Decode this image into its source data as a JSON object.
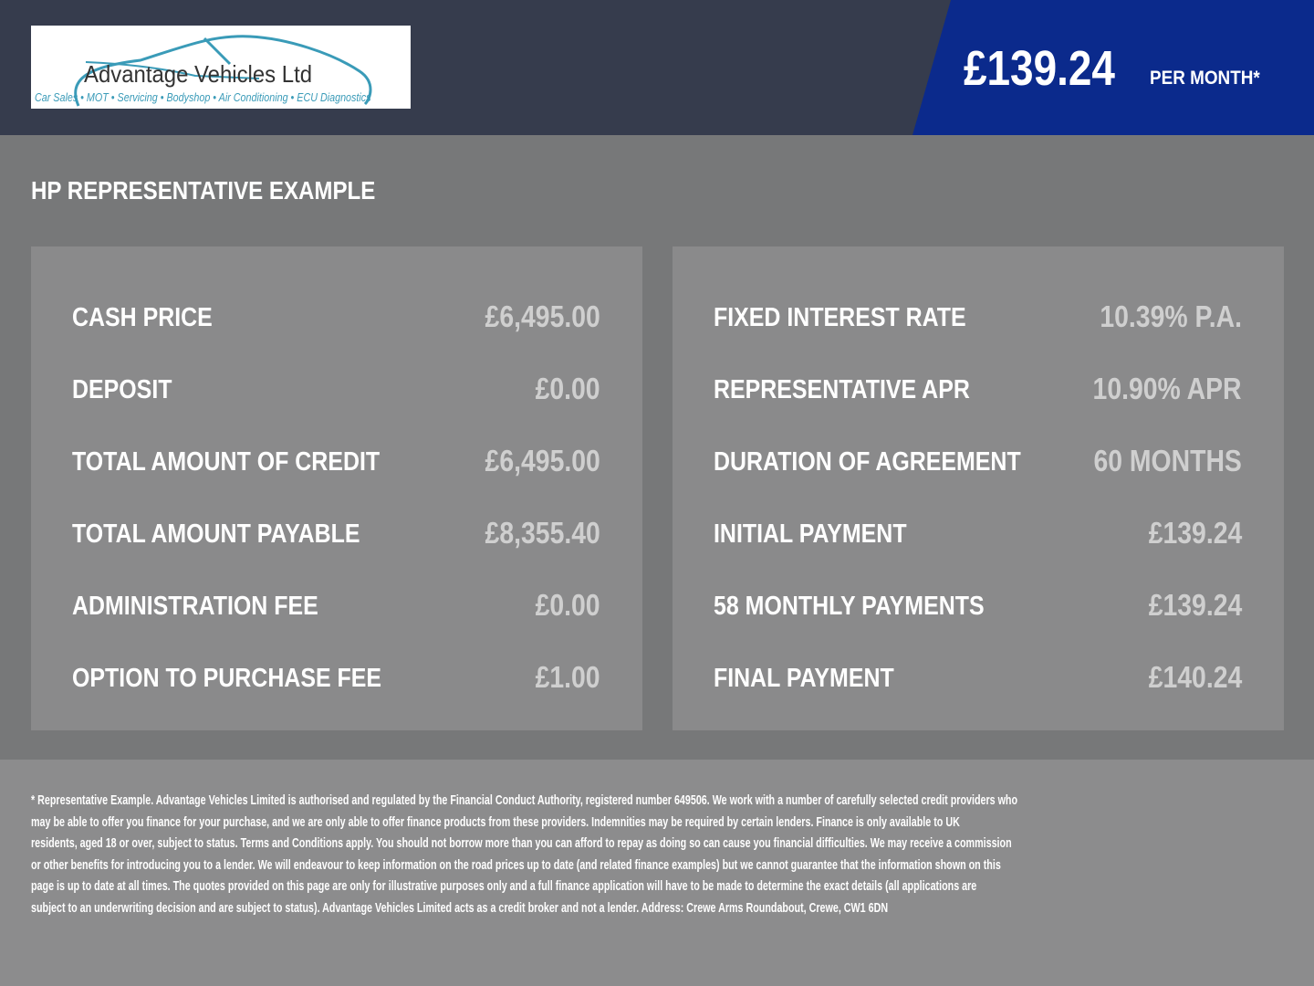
{
  "header": {
    "logo": {
      "name": "Advantage Vehicles Ltd",
      "tagline": "Car Sales • MOT • Servicing • Bodyshop • Air Conditioning • ECU Diagnostics"
    },
    "monthly_price": "£139.24",
    "per_month_label": "PER MONTH*",
    "colors": {
      "header_bg": "#363c4d",
      "price_bg": "#0b2a8c"
    }
  },
  "section_title": "HP REPRESENTATIVE EXAMPLE",
  "left_rows": [
    {
      "label": "CASH PRICE",
      "value": "£6,495.00"
    },
    {
      "label": "DEPOSIT",
      "value": "£0.00"
    },
    {
      "label": "TOTAL AMOUNT OF CREDIT",
      "value": "£6,495.00"
    },
    {
      "label": "TOTAL AMOUNT PAYABLE",
      "value": "£8,355.40"
    },
    {
      "label": "ADMINISTRATION FEE",
      "value": "£0.00"
    },
    {
      "label": "OPTION TO PURCHASE FEE",
      "value": "£1.00"
    }
  ],
  "right_rows": [
    {
      "label": "FIXED INTEREST RATE",
      "value": "10.39% P.A."
    },
    {
      "label": "REPRESENTATIVE APR",
      "value": "10.90% APR"
    },
    {
      "label": "DURATION OF AGREEMENT",
      "value": "60 MONTHS"
    },
    {
      "label": "INITIAL PAYMENT",
      "value": "£139.24"
    },
    {
      "label": "58 MONTHLY PAYMENTS",
      "value": "£139.24"
    },
    {
      "label": "FINAL PAYMENT",
      "value": "£140.24"
    }
  ],
  "footer_lines": [
    "* Representative Example. Advantage Vehicles Limited is authorised and regulated by the Financial Conduct Authority, registered number 649506. We work with a number of carefully selected credit providers who",
    "may be able to offer you finance for your purchase, and we are only able to offer finance products from these providers. Indemnities may be required by certain lenders. Finance is only available to UK",
    "residents, aged 18 or over, subject to status. Terms and Conditions apply. You should not borrow more than you can afford to repay as doing so can cause you financial difficulties. We may receive a commission",
    "or other benefits for introducing you to a lender. We will endeavour to keep information on the road prices up to date (and related finance examples) but we cannot guarantee that the information shown on this",
    "page is up to date at all times. The quotes provided on this page are only for illustrative purposes only and a full finance application will have to be made to determine the exact details (all applications are",
    "subject to an underwriting decision and are subject to status). Advantage Vehicles Limited acts as a credit broker and not a lender. Address: Crewe Arms Roundabout, Crewe, CW1 6DN"
  ]
}
